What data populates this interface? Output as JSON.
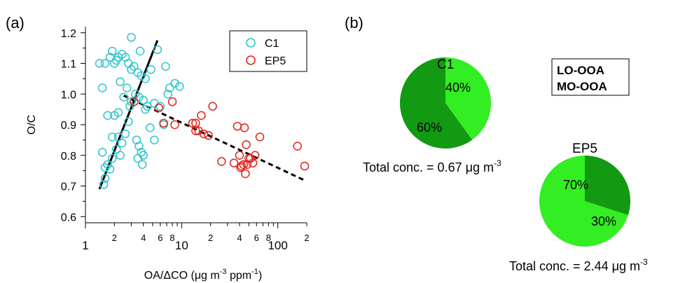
{
  "panel_labels": {
    "a": "(a)",
    "b": "(b)"
  },
  "colors": {
    "c1": "#2ec4cb",
    "ep5": "#e0231c",
    "lo_ooa": "#33ee22",
    "mo_ooa": "#129a12"
  },
  "chart_data": [
    {
      "type": "scatter",
      "panel": "(a)",
      "xlabel_parts": {
        "main": "OA/ΔCO  (μg m",
        "sup1": "-3",
        "mid": " ppm",
        "sup2": "-1",
        "end": ")"
      },
      "ylabel": "O/C",
      "xscale": "log",
      "xlim": [
        1,
        200
      ],
      "ylim": [
        0.58,
        1.22
      ],
      "x_tick_labels": [
        {
          "v": 1,
          "t": "1",
          "size": "major"
        },
        {
          "v": 2,
          "t": "2",
          "size": "minor"
        },
        {
          "v": 4,
          "t": "4",
          "size": "minor"
        },
        {
          "v": 6,
          "t": "6",
          "size": "minor"
        },
        {
          "v": 8,
          "t": "8",
          "size": "minor"
        },
        {
          "v": 10,
          "t": "10",
          "size": "major"
        },
        {
          "v": 20,
          "t": "2",
          "size": "minor"
        },
        {
          "v": 40,
          "t": "4",
          "size": "minor"
        },
        {
          "v": 60,
          "t": "6",
          "size": "minor"
        },
        {
          "v": 80,
          "t": "8",
          "size": "minor"
        },
        {
          "v": 100,
          "t": "100",
          "size": "major"
        },
        {
          "v": 200,
          "t": "2",
          "size": "minor"
        }
      ],
      "y_ticks": [
        {
          "v": 0.6,
          "t": "0.6"
        },
        {
          "v": 0.7,
          "t": "0.7"
        },
        {
          "v": 0.8,
          "t": "0.8"
        },
        {
          "v": 0.9,
          "t": "0.9"
        },
        {
          "v": 1.0,
          "t": "1.0"
        },
        {
          "v": 1.1,
          "t": "1.1"
        },
        {
          "v": 1.2,
          "t": "1.2"
        }
      ],
      "legend_position": "top-right",
      "series": [
        {
          "name": "C1",
          "color": "#2ec4cb",
          "marker": "open-circle",
          "points": [
            [
              1.4,
              1.1
            ],
            [
              1.5,
              1.02
            ],
            [
              1.6,
              1.1
            ],
            [
              1.7,
              0.93
            ],
            [
              1.8,
              1.12
            ],
            [
              1.9,
              1.14
            ],
            [
              2.0,
              1.1
            ],
            [
              2.1,
              1.11
            ],
            [
              2.2,
              1.12
            ],
            [
              2.4,
              1.13
            ],
            [
              2.6,
              1.12
            ],
            [
              2.8,
              1.1
            ],
            [
              3.0,
              1.08
            ],
            [
              3.2,
              1.09
            ],
            [
              3.0,
              1.185
            ],
            [
              3.5,
              1.07
            ],
            [
              3.7,
              1.14
            ],
            [
              4.2,
              1.05
            ],
            [
              4.8,
              1.08
            ],
            [
              5.6,
              1.145
            ],
            [
              6.8,
              1.09
            ],
            [
              7.5,
              1.02
            ],
            [
              8.5,
              1.035
            ],
            [
              9.5,
              1.025
            ],
            [
              2.3,
              1.04
            ],
            [
              2.7,
              1.02
            ],
            [
              2.5,
              0.99
            ],
            [
              3.3,
              1.0
            ],
            [
              3.6,
              0.99
            ],
            [
              4.0,
              0.98
            ],
            [
              4.4,
              0.96
            ],
            [
              5.2,
              0.97
            ],
            [
              6.0,
              0.96
            ],
            [
              7.2,
              1.0
            ],
            [
              3.8,
              1.06
            ],
            [
              4.2,
              0.95
            ],
            [
              2.2,
              0.94
            ],
            [
              2.0,
              0.93
            ],
            [
              1.9,
              0.86
            ],
            [
              2.2,
              0.86
            ],
            [
              2.4,
              0.84
            ],
            [
              2.6,
              0.87
            ],
            [
              2.8,
              0.91
            ],
            [
              3.4,
              0.85
            ],
            [
              3.6,
              0.83
            ],
            [
              3.8,
              0.81
            ],
            [
              3.5,
              0.79
            ],
            [
              4.0,
              0.8
            ],
            [
              3.9,
              0.77
            ],
            [
              2.1,
              0.82
            ],
            [
              2.3,
              0.8
            ],
            [
              1.9,
              0.79
            ],
            [
              1.6,
              0.76
            ],
            [
              1.5,
              0.81
            ],
            [
              1.7,
              0.77
            ],
            [
              1.6,
              0.725
            ],
            [
              1.55,
              0.705
            ],
            [
              1.8,
              0.755
            ],
            [
              4.7,
              0.89
            ],
            [
              5.2,
              0.85
            ],
            [
              6.5,
              0.9
            ],
            [
              3.0,
              0.975
            ],
            [
              2.9,
              0.96
            ]
          ]
        },
        {
          "name": "EP5",
          "color": "#e0231c",
          "marker": "open-circle",
          "points": [
            [
              3.2,
              0.975
            ],
            [
              5.8,
              0.955
            ],
            [
              6.5,
              0.905
            ],
            [
              8.0,
              0.975
            ],
            [
              8.5,
              0.9
            ],
            [
              13,
              0.905
            ],
            [
              14,
              0.905
            ],
            [
              15,
              0.88
            ],
            [
              17,
              0.87
            ],
            [
              19,
              0.865
            ],
            [
              21,
              0.96
            ],
            [
              16,
              0.93
            ],
            [
              26,
              0.78
            ],
            [
              35,
              0.775
            ],
            [
              38,
              0.895
            ],
            [
              41,
              0.76
            ],
            [
              42,
              0.765
            ],
            [
              44,
              0.77
            ],
            [
              46,
              0.74
            ],
            [
              48,
              0.77
            ],
            [
              50,
              0.79
            ],
            [
              52,
              0.79
            ],
            [
              55,
              0.775
            ],
            [
              58,
              0.8
            ],
            [
              47,
              0.835
            ],
            [
              65,
              0.86
            ],
            [
              45,
              0.89
            ],
            [
              40,
              0.8
            ],
            [
              160,
              0.83
            ],
            [
              190,
              0.765
            ],
            [
              14,
              0.88
            ]
          ]
        }
      ],
      "fit_lines": [
        {
          "style": "solid",
          "from": [
            1.4,
            0.69
          ],
          "to": [
            5.6,
            1.175
          ]
        },
        {
          "style": "dashed",
          "from": [
            2.5,
            0.995
          ],
          "to": [
            185,
            0.72
          ]
        }
      ]
    },
    {
      "type": "pie",
      "panel": "(b)",
      "title": "C1",
      "slices": [
        {
          "label": "LO-OOA",
          "text": "40%",
          "value": 40
        },
        {
          "label": "MO-OOA",
          "text": "60%",
          "value": 60
        }
      ],
      "caption_main": "Total conc. = 0.67 μg m",
      "caption_sup": "-3"
    },
    {
      "type": "pie",
      "panel": "(b)",
      "title": "EP5",
      "slices": [
        {
          "label": "LO-OOA",
          "text": "70%",
          "value": 70
        },
        {
          "label": "MO-OOA",
          "text": "30%",
          "value": 30
        }
      ],
      "caption_main": "Total conc. = 2.44 μg m",
      "caption_sup": "-3"
    }
  ],
  "pie_legend": [
    {
      "label": "LO-OOA",
      "color": "#33ee22"
    },
    {
      "label": "MO-OOA",
      "color": "#129a12"
    }
  ]
}
